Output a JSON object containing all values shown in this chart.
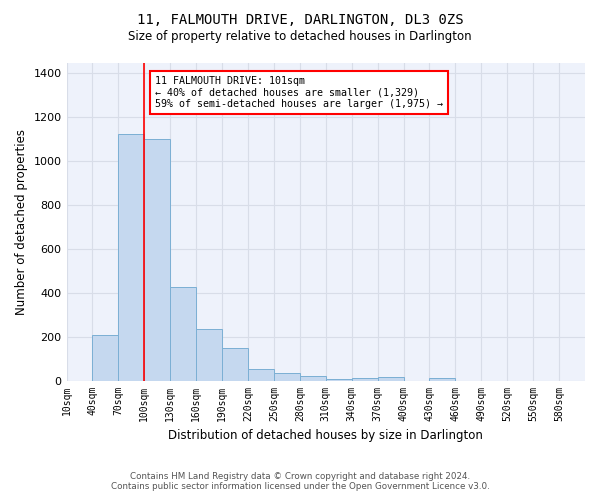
{
  "title": "11, FALMOUTH DRIVE, DARLINGTON, DL3 0ZS",
  "subtitle": "Size of property relative to detached houses in Darlington",
  "xlabel": "Distribution of detached houses by size in Darlington",
  "ylabel": "Number of detached properties",
  "footer_line1": "Contains HM Land Registry data © Crown copyright and database right 2024.",
  "footer_line2": "Contains public sector information licensed under the Open Government Licence v3.0.",
  "bar_color": "#c5d8ef",
  "bar_edge_color": "#7bafd4",
  "background_color": "#eef2fb",
  "grid_color": "#d8dde8",
  "annotation_line1": "11 FALMOUTH DRIVE: 101sqm",
  "annotation_line2": "← 40% of detached houses are smaller (1,329)",
  "annotation_line3": "59% of semi-detached houses are larger (1,975) →",
  "red_line_x": 100,
  "bin_edges": [
    10,
    40,
    70,
    100,
    130,
    160,
    190,
    220,
    250,
    280,
    310,
    340,
    370,
    400,
    430,
    460,
    490,
    520,
    550,
    580,
    610
  ],
  "counts": [
    0,
    210,
    1125,
    1100,
    430,
    235,
    150,
    55,
    38,
    25,
    10,
    15,
    18,
    0,
    12,
    0,
    0,
    0,
    0,
    0
  ],
  "ylim": [
    0,
    1450
  ],
  "yticks": [
    0,
    200,
    400,
    600,
    800,
    1000,
    1200,
    1400
  ]
}
